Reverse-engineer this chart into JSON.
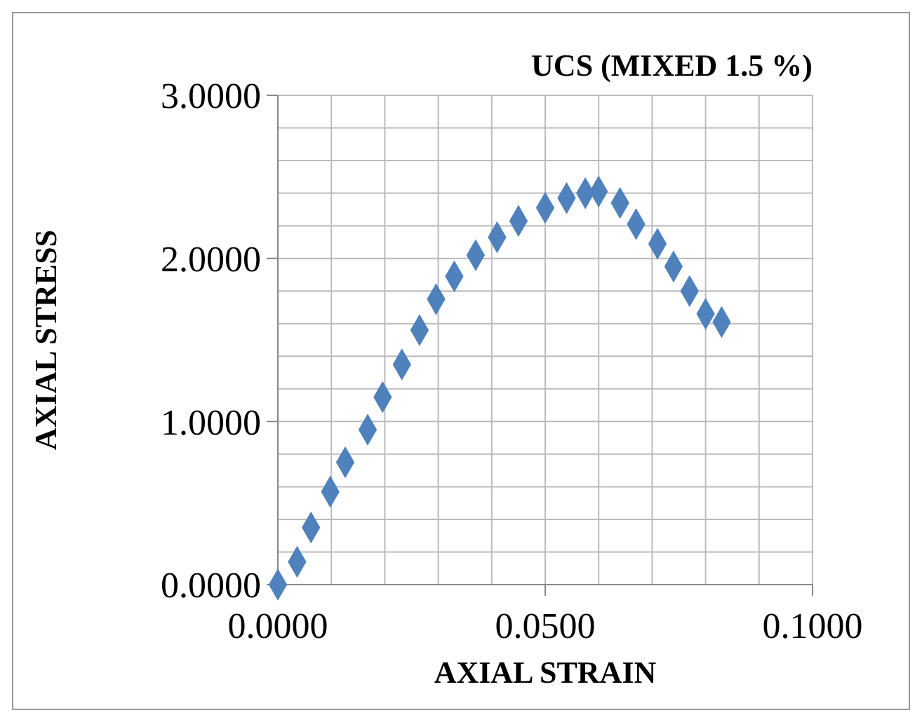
{
  "chart_data": {
    "type": "scatter",
    "title": "UCS (MIXED 1.5 %)",
    "xlabel": "AXIAL STRAIN",
    "ylabel": "AXIAL STRESS",
    "x": [
      0,
      0.0036,
      0.0062,
      0.0098,
      0.0126,
      0.0168,
      0.0196,
      0.0232,
      0.0265,
      0.0296,
      0.033,
      0.037,
      0.041,
      0.045,
      0.05,
      0.054,
      0.0575,
      0.06,
      0.064,
      0.067,
      0.071,
      0.074,
      0.077,
      0.08,
      0.083
    ],
    "series": [
      {
        "color": "#4f81bd",
        "values": [
          0,
          0.14,
          0.35,
          0.57,
          0.75,
          0.95,
          1.15,
          1.35,
          1.56,
          1.75,
          1.89,
          2.02,
          2.13,
          2.23,
          2.31,
          2.37,
          2.4,
          2.41,
          2.34,
          2.21,
          2.09,
          1.95,
          1.8,
          1.66,
          1.61
        ]
      }
    ],
    "xlim": [
      0,
      0.1
    ],
    "xticks": [
      {
        "value": 0,
        "label": "0.0000"
      },
      {
        "value": 0.01,
        "label": null
      },
      {
        "value": 0.02,
        "label": null
      },
      {
        "value": 0.03,
        "label": null
      },
      {
        "value": 0.04,
        "label": null
      },
      {
        "value": 0.05,
        "label": "0.0500"
      },
      {
        "value": 0.06,
        "label": null
      },
      {
        "value": 0.07,
        "label": null
      },
      {
        "value": 0.08,
        "label": null
      },
      {
        "value": 0.09,
        "label": null
      },
      {
        "value": 0.1,
        "label": "0.1000"
      }
    ],
    "ylim": [
      0,
      3
    ],
    "yticks": [
      {
        "value": 0,
        "label": "0.0000"
      },
      {
        "value": 0.2,
        "label": null
      },
      {
        "value": 0.4,
        "label": null
      },
      {
        "value": 0.6,
        "label": null
      },
      {
        "value": 0.8,
        "label": null
      },
      {
        "value": 1,
        "label": "1.0000"
      },
      {
        "value": 1.2,
        "label": null
      },
      {
        "value": 1.4,
        "label": null
      },
      {
        "value": 1.6,
        "label": null
      },
      {
        "value": 1.8,
        "label": null
      },
      {
        "value": 2,
        "label": "2.0000"
      },
      {
        "value": 2.2,
        "label": null
      },
      {
        "value": 2.4,
        "label": null
      },
      {
        "value": 2.6,
        "label": null
      },
      {
        "value": 2.8,
        "label": null
      },
      {
        "value": 3,
        "label": "3.0000"
      }
    ],
    "grid": true,
    "marker": "diamond"
  }
}
